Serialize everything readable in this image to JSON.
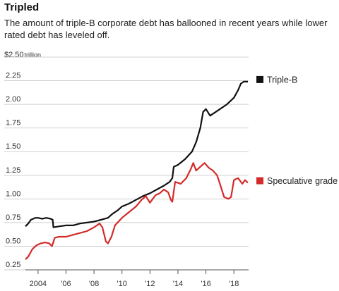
{
  "chart_data": {
    "type": "line",
    "title": "Tripled",
    "subtitle": "The amount of triple-B corporate debt has ballooned in recent years while lower rated debt has leveled off.",
    "ylabel_top": "$2.50",
    "ylabel_unit": "trillion",
    "ylim": [
      0.25,
      2.5
    ],
    "xlim": [
      2003.1,
      2019.05
    ],
    "y_ticks": [
      "2.25",
      "2.00",
      "1.75",
      "1.50",
      "1.25",
      "1.00",
      "0.75",
      "0.50",
      "0.25"
    ],
    "y_tick_values": [
      2.25,
      2.0,
      1.75,
      1.5,
      1.25,
      1.0,
      0.75,
      0.5,
      0.25
    ],
    "x_ticks": [
      "2004",
      "'06",
      "'08",
      "'10",
      "'12",
      "'14",
      "'16",
      "'18"
    ],
    "x_tick_values": [
      2004,
      2006,
      2008,
      2010,
      2012,
      2014,
      2016,
      2018
    ],
    "grid": true,
    "series": [
      {
        "name": "Triple-B",
        "color": "#111111",
        "points": [
          [
            2003.1,
            0.71
          ],
          [
            2003.3,
            0.74
          ],
          [
            2003.5,
            0.78
          ],
          [
            2003.8,
            0.8
          ],
          [
            2004.0,
            0.8
          ],
          [
            2004.3,
            0.79
          ],
          [
            2004.6,
            0.8
          ],
          [
            2004.9,
            0.79
          ],
          [
            2005.05,
            0.78
          ],
          [
            2005.1,
            0.7
          ],
          [
            2005.5,
            0.71
          ],
          [
            2006.0,
            0.72
          ],
          [
            2006.5,
            0.72
          ],
          [
            2007.0,
            0.74
          ],
          [
            2007.5,
            0.75
          ],
          [
            2008.0,
            0.76
          ],
          [
            2008.5,
            0.78
          ],
          [
            2009.0,
            0.8
          ],
          [
            2009.3,
            0.84
          ],
          [
            2009.7,
            0.88
          ],
          [
            2010.0,
            0.92
          ],
          [
            2010.5,
            0.95
          ],
          [
            2011.0,
            0.99
          ],
          [
            2011.5,
            1.03
          ],
          [
            2012.0,
            1.06
          ],
          [
            2012.5,
            1.1
          ],
          [
            2013.0,
            1.14
          ],
          [
            2013.4,
            1.18
          ],
          [
            2013.6,
            1.22
          ],
          [
            2013.7,
            1.34
          ],
          [
            2014.0,
            1.36
          ],
          [
            2014.5,
            1.42
          ],
          [
            2015.0,
            1.5
          ],
          [
            2015.3,
            1.6
          ],
          [
            2015.6,
            1.75
          ],
          [
            2015.8,
            1.92
          ],
          [
            2016.0,
            1.95
          ],
          [
            2016.3,
            1.88
          ],
          [
            2016.6,
            1.91
          ],
          [
            2017.0,
            1.95
          ],
          [
            2017.5,
            2.0
          ],
          [
            2018.0,
            2.07
          ],
          [
            2018.3,
            2.15
          ],
          [
            2018.5,
            2.22
          ],
          [
            2018.7,
            2.24
          ],
          [
            2019.0,
            2.24
          ]
        ]
      },
      {
        "name": "Speculative grade",
        "color": "#d42a2a",
        "points": [
          [
            2003.1,
            0.36
          ],
          [
            2003.3,
            0.39
          ],
          [
            2003.6,
            0.47
          ],
          [
            2003.9,
            0.51
          ],
          [
            2004.2,
            0.53
          ],
          [
            2004.5,
            0.54
          ],
          [
            2004.8,
            0.53
          ],
          [
            2005.0,
            0.5
          ],
          [
            2005.2,
            0.59
          ],
          [
            2005.5,
            0.6
          ],
          [
            2006.0,
            0.6
          ],
          [
            2006.5,
            0.62
          ],
          [
            2007.0,
            0.64
          ],
          [
            2007.5,
            0.66
          ],
          [
            2008.0,
            0.7
          ],
          [
            2008.4,
            0.74
          ],
          [
            2008.6,
            0.7
          ],
          [
            2008.85,
            0.55
          ],
          [
            2009.0,
            0.53
          ],
          [
            2009.25,
            0.6
          ],
          [
            2009.5,
            0.72
          ],
          [
            2010.0,
            0.8
          ],
          [
            2010.5,
            0.86
          ],
          [
            2011.0,
            0.92
          ],
          [
            2011.4,
            0.99
          ],
          [
            2011.7,
            1.03
          ],
          [
            2012.0,
            0.96
          ],
          [
            2012.4,
            1.04
          ],
          [
            2012.7,
            1.06
          ],
          [
            2013.0,
            1.1
          ],
          [
            2013.3,
            1.07
          ],
          [
            2013.5,
            0.99
          ],
          [
            2013.6,
            0.97
          ],
          [
            2013.8,
            1.18
          ],
          [
            2014.2,
            1.16
          ],
          [
            2014.6,
            1.22
          ],
          [
            2014.9,
            1.31
          ],
          [
            2015.1,
            1.38
          ],
          [
            2015.3,
            1.3
          ],
          [
            2015.6,
            1.34
          ],
          [
            2015.9,
            1.38
          ],
          [
            2016.2,
            1.33
          ],
          [
            2016.5,
            1.3
          ],
          [
            2016.8,
            1.25
          ],
          [
            2017.0,
            1.16
          ],
          [
            2017.3,
            1.02
          ],
          [
            2017.6,
            1.0
          ],
          [
            2017.8,
            1.02
          ],
          [
            2018.0,
            1.2
          ],
          [
            2018.3,
            1.22
          ],
          [
            2018.6,
            1.16
          ],
          [
            2018.8,
            1.2
          ],
          [
            2019.0,
            1.17
          ]
        ]
      }
    ],
    "legend_position": "right, beside line ends"
  }
}
